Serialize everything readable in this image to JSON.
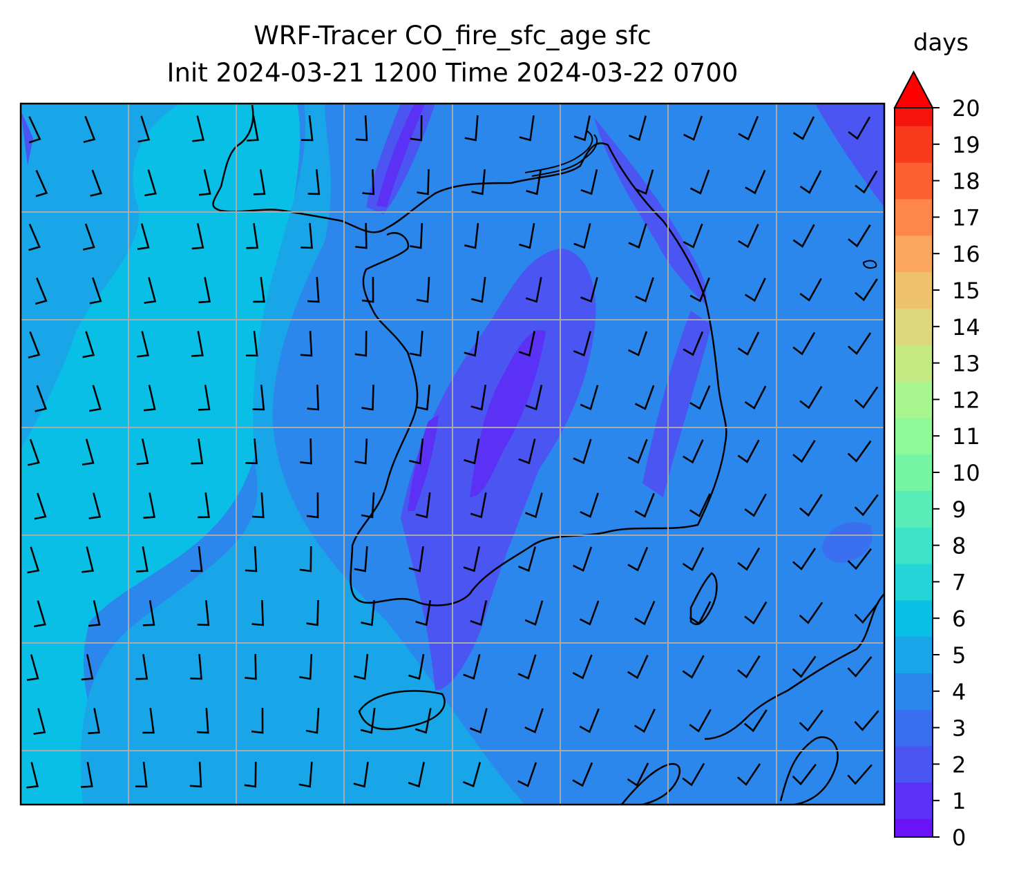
{
  "title": {
    "line1": "WRF-Tracer CO_fire_sfc_age sfc",
    "line2": "Init 2024-03-21 1200 Time 2024-03-22 0700"
  },
  "colorbar": {
    "label": "days",
    "ticks": [
      "0",
      "1",
      "2",
      "3",
      "4",
      "5",
      "6",
      "7",
      "8",
      "9",
      "10",
      "11",
      "12",
      "13",
      "14",
      "15",
      "16",
      "17",
      "18",
      "19",
      "20"
    ],
    "colors": [
      "#6a14f6",
      "#5b32f5",
      "#4a55f2",
      "#3a70ef",
      "#2b87ec",
      "#19a6e8",
      "#0abfe5",
      "#24d4d6",
      "#3fe3c7",
      "#58ecb6",
      "#76f6a4",
      "#8ff898",
      "#a9f590",
      "#c6e882",
      "#dcd67c",
      "#efc26f",
      "#fba75f",
      "#fd864a",
      "#fb6130",
      "#f83b1d",
      "#f5140c"
    ],
    "extend_color": "#fe0000"
  },
  "map": {
    "background_color": "#2b87ec"
  }
}
